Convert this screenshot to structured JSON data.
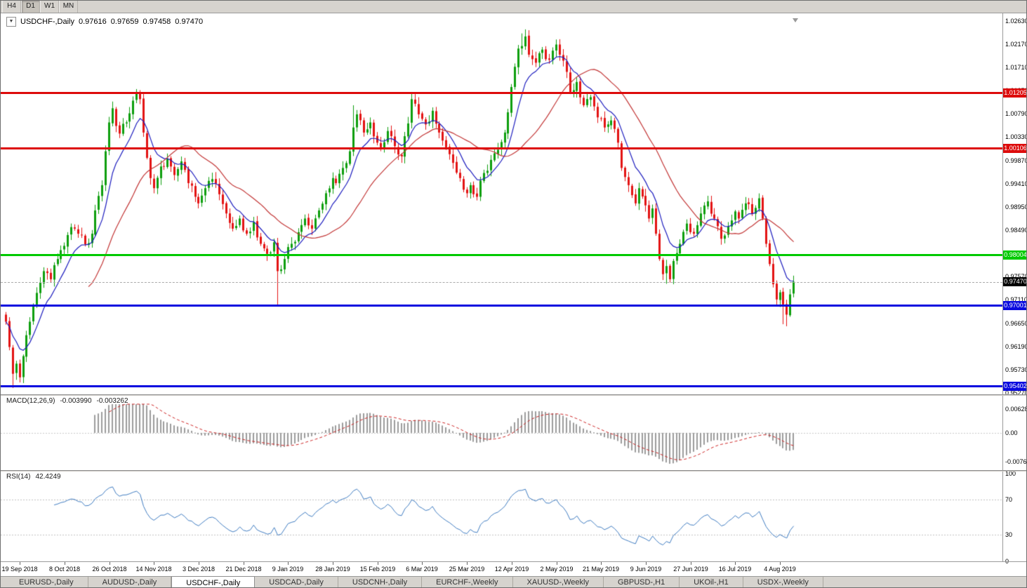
{
  "toolbar": {
    "timeframes": [
      "H4",
      "D1",
      "W1",
      "MN"
    ],
    "active_timeframe": "D1"
  },
  "main_chart": {
    "header": {
      "dropdown_button": "▼",
      "title": "USDCHF-,Daily",
      "open": "0.97616",
      "high": "0.97659",
      "low": "0.97458",
      "close": "0.97470"
    },
    "y_axis_labels": [
      "1.02630",
      "1.02170",
      "1.01710",
      "1.01250",
      "1.00790",
      "1.00330",
      "0.99870",
      "0.99410",
      "0.98950",
      "0.98490",
      "0.98030",
      "0.97570",
      "0.97110",
      "0.96650",
      "0.96190",
      "0.95730",
      "0.95270"
    ],
    "levels": [
      {
        "label": "1.01205",
        "price": 1.01205,
        "color": "#dd0c0c",
        "thickness": 3
      },
      {
        "label": "1.00106",
        "price": 1.00106,
        "color": "#dd0c0c",
        "thickness": 3
      },
      {
        "label": "0.98004",
        "price": 0.98004,
        "color": "#00ca00",
        "thickness": 3
      },
      {
        "label": "0.97001",
        "price": 0.97001,
        "color": "#0a0adf",
        "thickness": 3
      },
      {
        "label": "0.95402",
        "price": 0.95402,
        "color": "#0a0adf",
        "thickness": 3
      }
    ],
    "current_price": {
      "label": "0.97470",
      "price": 0.9747,
      "badge_color": "#000000"
    }
  },
  "macd_panel": {
    "name": "MACD(12,26,9)",
    "value_main": "-0.003990",
    "value_signal": "-0.003262",
    "axis_labels": [
      {
        "text": "0.006286",
        "value": 0.006286
      },
      {
        "text": "0.00",
        "value": 0
      },
      {
        "text": "-0.00762",
        "value": -0.00762
      }
    ]
  },
  "rsi_panel": {
    "name": "RSI(14)",
    "value": "42.4249",
    "levels": [
      70,
      30
    ],
    "axis_labels": [
      {
        "text": "100",
        "value": 100
      },
      {
        "text": "70",
        "value": 70
      },
      {
        "text": "30",
        "value": 30
      },
      {
        "text": "0",
        "value": 0
      }
    ]
  },
  "x_axis": {
    "date_labels": [
      "19 Sep 2018",
      "8 Oct 2018",
      "26 Oct 2018",
      "14 Nov 2018",
      "3 Dec 2018",
      "21 Dec 2018",
      "9 Jan 2019",
      "28 Jan 2019",
      "15 Feb 2019",
      "6 Mar 2019",
      "25 Mar 2019",
      "12 Apr 2019",
      "2 May 2019",
      "21 May 2019",
      "9 Jun 2019",
      "27 Jun 2019",
      "16 Jul 2019",
      "4 Aug 2019"
    ]
  },
  "bottom_tabs": {
    "tabs": [
      "EURUSD-,Daily",
      "AUDUSD-,Daily",
      "USDCHF-,Daily",
      "USDCAD-,Daily",
      "USDCNH-,Daily",
      "EURCHF-,Weekly",
      "XAUUSD-,Weekly",
      "GBPUSD-,H1",
      "UKOil-,H1",
      "USDX-,Weekly"
    ],
    "active_tab": "USDCHF-,Daily"
  },
  "chart_data": {
    "type": "candlestick",
    "symbol": "USDCHF",
    "timeframe": "Daily",
    "candle_count": 230,
    "y_range": [
      0.9523,
      1.0268
    ],
    "ohlc_current": {
      "open": 0.97616,
      "high": 0.97659,
      "low": 0.97458,
      "close": 0.9747
    },
    "horizontal_levels": [
      1.01205,
      1.00106,
      0.98004,
      0.97001,
      0.95402
    ],
    "close_path_anchors": [
      [
        0,
        0.9668
      ],
      [
        1,
        0.9618
      ],
      [
        2,
        0.9565
      ],
      [
        3,
        0.9585
      ],
      [
        4,
        0.9558
      ],
      [
        5,
        0.96
      ],
      [
        7,
        0.9668
      ],
      [
        9,
        0.9725
      ],
      [
        11,
        0.9768
      ],
      [
        13,
        0.9752
      ],
      [
        15,
        0.9792
      ],
      [
        17,
        0.9818
      ],
      [
        19,
        0.9855
      ],
      [
        21,
        0.9842
      ],
      [
        23,
        0.9821
      ],
      [
        25,
        0.9842
      ],
      [
        26,
        0.9888
      ],
      [
        28,
        0.9938
      ],
      [
        29,
        1.0005
      ],
      [
        30,
        1.0062
      ],
      [
        31,
        1.009
      ],
      [
        32,
        1.0055
      ],
      [
        33,
        1.004
      ],
      [
        35,
        1.0062
      ],
      [
        36,
        1.008
      ],
      [
        37,
        1.0105
      ],
      [
        38,
        1.0122
      ],
      [
        39,
        1.0108
      ],
      [
        40,
        1.0042
      ],
      [
        41,
        0.9992
      ],
      [
        42,
        0.9952
      ],
      [
        43,
        0.9932
      ],
      [
        45,
        0.9975
      ],
      [
        47,
        0.999
      ],
      [
        49,
        0.9958
      ],
      [
        51,
        0.9985
      ],
      [
        53,
        0.9942
      ],
      [
        55,
        0.9915
      ],
      [
        56,
        0.9902
      ],
      [
        58,
        0.9932
      ],
      [
        60,
        0.995
      ],
      [
        62,
        0.992
      ],
      [
        64,
        0.9882
      ],
      [
        66,
        0.9852
      ],
      [
        68,
        0.9872
      ],
      [
        70,
        0.9842
      ],
      [
        72,
        0.9865
      ],
      [
        74,
        0.9822
      ],
      [
        76,
        0.9802
      ],
      [
        78,
        0.9825
      ],
      [
        79,
        0.9768
      ],
      [
        81,
        0.9792
      ],
      [
        83,
        0.9822
      ],
      [
        85,
        0.9845
      ],
      [
        87,
        0.9872
      ],
      [
        89,
        0.9852
      ],
      [
        91,
        0.9888
      ],
      [
        93,
        0.9922
      ],
      [
        95,
        0.9952
      ],
      [
        96,
        0.9942
      ],
      [
        98,
        0.9972
      ],
      [
        100,
        1.0005
      ],
      [
        101,
        1.0052
      ],
      [
        102,
        1.0078
      ],
      [
        104,
        1.0042
      ],
      [
        106,
        1.0062
      ],
      [
        108,
        1.0022
      ],
      [
        109,
        1.0012
      ],
      [
        111,
        1.0045
      ],
      [
        113,
        1.0015
      ],
      [
        115,
        0.9995
      ],
      [
        117,
        1.006
      ],
      [
        118,
        1.0108
      ],
      [
        120,
        1.0078
      ],
      [
        122,
        1.0058
      ],
      [
        124,
        1.0085
      ],
      [
        126,
        1.0042
      ],
      [
        128,
        1.0012
      ],
      [
        130,
        0.9982
      ],
      [
        132,
        0.9952
      ],
      [
        134,
        0.9922
      ],
      [
        135,
        0.9938
      ],
      [
        137,
        0.9915
      ],
      [
        139,
        0.9962
      ],
      [
        141,
        0.9988
      ],
      [
        143,
        1.0008
      ],
      [
        145,
        1.0042
      ],
      [
        146,
        1.0082
      ],
      [
        147,
        1.0132
      ],
      [
        148,
        1.0172
      ],
      [
        149,
        1.0208
      ],
      [
        151,
        1.0232
      ],
      [
        152,
        1.0196
      ],
      [
        154,
        1.018
      ],
      [
        156,
        1.0206
      ],
      [
        158,
        1.0186
      ],
      [
        160,
        1.0216
      ],
      [
        161,
        1.0196
      ],
      [
        163,
        1.0162
      ],
      [
        164,
        1.0122
      ],
      [
        166,
        1.0142
      ],
      [
        168,
        1.0096
      ],
      [
        170,
        1.0112
      ],
      [
        172,
        1.0072
      ],
      [
        174,
        1.0052
      ],
      [
        176,
        1.0066
      ],
      [
        178,
        1.0022
      ],
      [
        179,
        0.9972
      ],
      [
        181,
        0.9938
      ],
      [
        183,
        0.9902
      ],
      [
        184,
        0.9932
      ],
      [
        186,
        0.9898
      ],
      [
        187,
        0.9872
      ],
      [
        188,
        0.9892
      ],
      [
        189,
        0.9842
      ],
      [
        190,
        0.9792
      ],
      [
        191,
        0.9762
      ],
      [
        192,
        0.9778
      ],
      [
        193,
        0.9752
      ],
      [
        194,
        0.9788
      ],
      [
        196,
        0.9822
      ],
      [
        198,
        0.9862
      ],
      [
        200,
        0.9842
      ],
      [
        202,
        0.9882
      ],
      [
        204,
        0.9906
      ],
      [
        206,
        0.9872
      ],
      [
        208,
        0.9832
      ],
      [
        210,
        0.9856
      ],
      [
        212,
        0.9886
      ],
      [
        213,
        0.9872
      ],
      [
        215,
        0.9902
      ],
      [
        217,
        0.9882
      ],
      [
        219,
        0.9912
      ],
      [
        220,
        0.9872
      ],
      [
        221,
        0.9822
      ],
      [
        222,
        0.9782
      ],
      [
        223,
        0.9742
      ],
      [
        224,
        0.9712
      ],
      [
        225,
        0.9726
      ],
      [
        226,
        0.9702
      ],
      [
        227,
        0.9682
      ],
      [
        228,
        0.9722
      ],
      [
        229,
        0.9747
      ]
    ],
    "wick_overrides": {
      "2": {
        "low": 0.9537
      },
      "4": {
        "low": 0.9548
      },
      "38": {
        "high": 1.0128
      },
      "79": {
        "low": 0.9701
      },
      "101": {
        "high": 1.0096
      },
      "118": {
        "high": 1.0121
      },
      "150": {
        "high": 1.0238
      },
      "151": {
        "high": 1.0246
      },
      "160": {
        "high": 1.0226
      },
      "192": {
        "low": 0.9743
      },
      "224": {
        "low": 0.9699
      },
      "226": {
        "low": 0.9663
      },
      "227": {
        "low": 0.9659
      }
    },
    "moving_averages": [
      {
        "period": 9,
        "type": "ema",
        "color": "#1c1cbe"
      },
      {
        "period": 25,
        "type": "sma",
        "color": "#c23535"
      }
    ],
    "indicators": [
      {
        "name": "MACD",
        "params": [
          12,
          26,
          9
        ],
        "current_main": -0.00399,
        "current_signal": -0.003262
      },
      {
        "name": "RSI",
        "params": [
          14
        ],
        "current": 42.4249,
        "levels": [
          70,
          30
        ]
      }
    ],
    "colors": {
      "bull": "#0d9e0d",
      "bear": "#e31212",
      "macd_histogram": "#9b9b9b",
      "macd_signal": "#cc2222",
      "rsi_line": "#3e7bc0"
    }
  }
}
